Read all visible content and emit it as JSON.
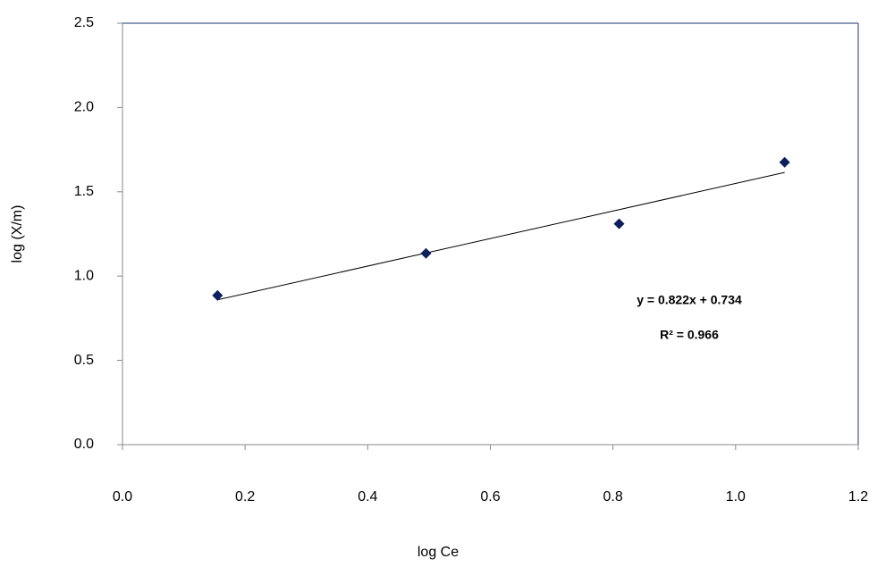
{
  "chart_data": {
    "type": "scatter",
    "x_label": "log Ce",
    "y_label": "log (X/m)",
    "series": [
      {
        "color": "#0d1f5c",
        "x": [
          0.155,
          0.495,
          0.81,
          1.08
        ],
        "values": [
          0.885,
          1.135,
          1.31,
          1.675
        ]
      }
    ],
    "trendline": true,
    "annotations": [
      "y = 0.822x + 0.734",
      "R² = 0.966"
    ],
    "xlim": [
      0,
      1.2
    ],
    "xticks": [
      {
        "value": 0,
        "label": "0.0"
      },
      0.2,
      0.4,
      0.6,
      0.8,
      {
        "value": 1,
        "label": "1.0"
      },
      1.2
    ],
    "ylim": [
      0,
      2.5
    ],
    "yticks": [
      {
        "value": 0,
        "label": "0.0"
      },
      0.5,
      {
        "value": 1,
        "label": "1.0"
      },
      1.5,
      {
        "value": 2,
        "label": "2.0"
      },
      2.5
    ],
    "grid": false
  }
}
